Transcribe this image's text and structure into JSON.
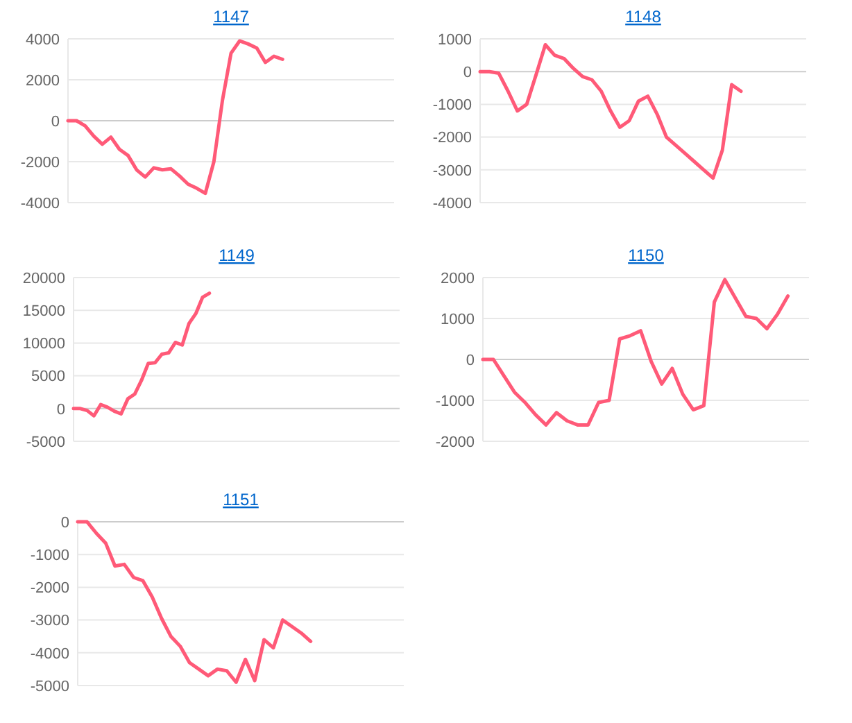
{
  "chart_data": [
    {
      "type": "line",
      "title": "1147",
      "categories": [
        null,
        null,
        null,
        null,
        null,
        null,
        null,
        null,
        null,
        null,
        null,
        null,
        null,
        null,
        null,
        null,
        null,
        null,
        null,
        null,
        null,
        null,
        null,
        null,
        null,
        null,
        null,
        null,
        null,
        null,
        null,
        null,
        null,
        null,
        null,
        null,
        null,
        null,
        null
      ],
      "values": [
        0,
        0,
        -250,
        -750,
        -1150,
        -800,
        -1400,
        -1700,
        -2400,
        -2750,
        -2300,
        -2400,
        -2350,
        -2700,
        -3100,
        -3300,
        -3550,
        -2000,
        1000,
        3300,
        3900,
        3750,
        3550,
        2850,
        3150,
        3000,
        null,
        null,
        null,
        null,
        null,
        null,
        null,
        null,
        null,
        null,
        null,
        null,
        null
      ],
      "color": "#ff5a78",
      "ylim": [
        -4000,
        4000
      ],
      "yticks": [
        -4000,
        -2000,
        0,
        2000,
        4000
      ],
      "grid": "y"
    },
    {
      "type": "line",
      "title": "1148",
      "categories": [
        null,
        null,
        null,
        null,
        null,
        null,
        null,
        null,
        null,
        null,
        null,
        null,
        null,
        null,
        null,
        null,
        null,
        null,
        null,
        null,
        null,
        null,
        null,
        null,
        null,
        null,
        null,
        null,
        null,
        null,
        null,
        null,
        null,
        null,
        null,
        null
      ],
      "values": [
        0,
        0,
        -50,
        -600,
        -1200,
        -1000,
        -100,
        820,
        500,
        400,
        100,
        -150,
        -250,
        -600,
        -1200,
        -1700,
        -1500,
        -900,
        -750,
        -1300,
        -2000,
        -2250,
        -2500,
        -2750,
        -3000,
        -3250,
        -2400,
        -400,
        -600,
        null,
        null,
        null,
        null,
        null,
        null,
        null
      ],
      "color": "#ff5a78",
      "ylim": [
        -4000,
        1000
      ],
      "yticks": [
        -4000,
        -3000,
        -2000,
        -1000,
        0,
        1000
      ],
      "grid": "y"
    },
    {
      "type": "line",
      "title": "1149",
      "categories": [
        null,
        null,
        null,
        null,
        null,
        null,
        null,
        null,
        null,
        null,
        null,
        null,
        null,
        null,
        null,
        null,
        null,
        null,
        null,
        null,
        null,
        null,
        null,
        null,
        null,
        null,
        null,
        null,
        null,
        null,
        null,
        null,
        null,
        null,
        null,
        null,
        null,
        null,
        null,
        null,
        null,
        null,
        null,
        null,
        null,
        null,
        null,
        null,
        null
      ],
      "values": [
        0,
        0,
        -300,
        -1100,
        600,
        200,
        -400,
        -800,
        1500,
        2200,
        4300,
        6900,
        7000,
        8300,
        8500,
        10100,
        9700,
        13000,
        14500,
        17000,
        17600,
        null,
        null,
        null,
        null,
        null,
        null,
        null,
        null,
        null,
        null,
        null,
        null,
        null,
        null,
        null,
        null,
        null,
        null,
        null,
        null,
        null,
        null,
        null,
        null,
        null,
        null,
        null,
        null
      ],
      "color": "#ff5a78",
      "ylim": [
        -5000,
        20000
      ],
      "yticks": [
        -5000,
        0,
        5000,
        10000,
        15000,
        20000
      ],
      "grid": "y"
    },
    {
      "type": "line",
      "title": "1150",
      "categories": [
        null,
        null,
        null,
        null,
        null,
        null,
        null,
        null,
        null,
        null,
        null,
        null,
        null,
        null,
        null,
        null,
        null,
        null,
        null,
        null,
        null,
        null,
        null,
        null,
        null,
        null,
        null,
        null,
        null,
        null,
        null,
        null
      ],
      "values": [
        0,
        0,
        -400,
        -800,
        -1050,
        -1350,
        -1600,
        -1300,
        -1500,
        -1600,
        -1600,
        -1050,
        -1000,
        500,
        580,
        700,
        -50,
        -600,
        -220,
        -850,
        -1230,
        -1130,
        1400,
        1950,
        1500,
        1050,
        1000,
        750,
        1100,
        1550,
        null,
        null
      ],
      "color": "#ff5a78",
      "ylim": [
        -2000,
        2000
      ],
      "yticks": [
        -2000,
        -1000,
        0,
        1000,
        2000
      ],
      "grid": "y"
    },
    {
      "type": "line",
      "title": "1151",
      "categories": [
        null,
        null,
        null,
        null,
        null,
        null,
        null,
        null,
        null,
        null,
        null,
        null,
        null,
        null,
        null,
        null,
        null,
        null,
        null,
        null,
        null,
        null,
        null,
        null,
        null,
        null,
        null,
        null,
        null,
        null,
        null,
        null,
        null,
        null,
        null,
        null
      ],
      "values": [
        0,
        0,
        -350,
        -650,
        -1350,
        -1300,
        -1700,
        -1800,
        -2300,
        -2950,
        -3500,
        -3800,
        -4300,
        -4500,
        -4700,
        -4500,
        -4550,
        -4900,
        -4200,
        -4850,
        -3600,
        -3850,
        -3000,
        -3200,
        -3400,
        -3650,
        null,
        null,
        null,
        null,
        null,
        null,
        null,
        null,
        null,
        null
      ],
      "color": "#ff5a78",
      "ylim": [
        -5000,
        0
      ],
      "yticks": [
        -5000,
        -4000,
        -3000,
        -2000,
        -1000,
        0
      ],
      "grid": "y"
    }
  ]
}
